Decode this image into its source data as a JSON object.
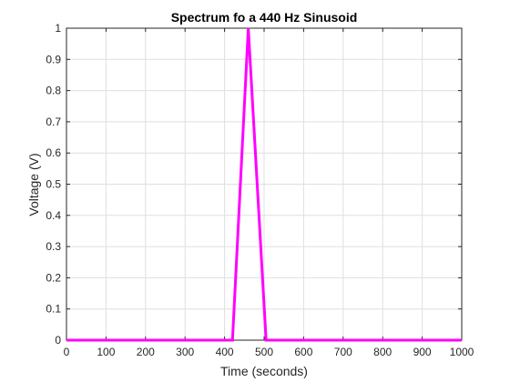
{
  "chart_data": {
    "type": "line",
    "title": "Spectrum fo a 440 Hz Sinusoid",
    "xlabel": "Time (seconds)",
    "ylabel": "Voltage (V)",
    "xlim": [
      0,
      1000
    ],
    "ylim": [
      0,
      1
    ],
    "xticks": [
      0,
      100,
      200,
      300,
      400,
      500,
      600,
      700,
      800,
      900,
      1000
    ],
    "yticks": [
      0,
      0.1,
      0.2,
      0.3,
      0.4,
      0.5,
      0.6,
      0.7,
      0.8,
      0.9,
      1
    ],
    "xtick_labels": [
      "0",
      "100",
      "200",
      "300",
      "400",
      "500",
      "600",
      "700",
      "800",
      "900",
      "1000"
    ],
    "ytick_labels": [
      "0",
      "0.1",
      "0.2",
      "0.3",
      "0.4",
      "0.5",
      "0.6",
      "0.7",
      "0.8",
      "0.9",
      "1"
    ],
    "grid": true,
    "series": [
      {
        "color": "#ff00ff",
        "x": [
          0,
          420,
          460,
          505,
          1000
        ],
        "y": [
          0,
          0,
          1,
          0,
          0
        ]
      }
    ]
  }
}
